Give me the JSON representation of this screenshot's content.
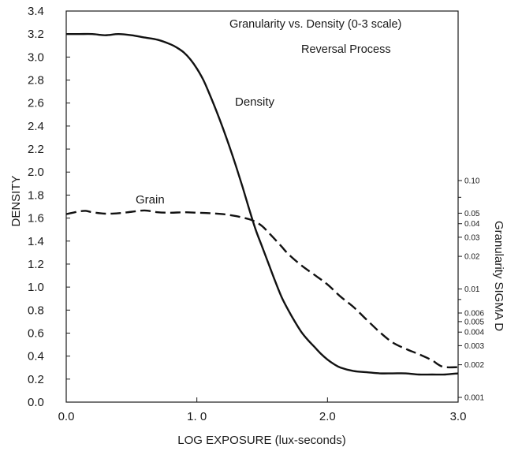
{
  "chart_data": {
    "type": "line",
    "title": "Granularity vs. Density (0-3 scale)",
    "subtitle": "Reversal Process",
    "xlabel": "LOG EXPOSURE (lux-seconds)",
    "ylabel": "DENSITY",
    "y2label": "Granularity SIGMA D",
    "xlim": [
      0,
      3
    ],
    "ylim": [
      0,
      3.4
    ],
    "y2lim": [
      0.001,
      0.2
    ],
    "y2scale": "log",
    "grid": false,
    "x_ticks": [
      {
        "value": 0,
        "label": "0.0"
      },
      {
        "value": 1,
        "label": "1. 0"
      },
      {
        "value": 2,
        "label": "2.0"
      },
      {
        "value": 3,
        "label": "3.0"
      }
    ],
    "y_ticks": [
      {
        "value": 0.0,
        "label": "0.0"
      },
      {
        "value": 0.2,
        "label": "0.2"
      },
      {
        "value": 0.4,
        "label": "0.4"
      },
      {
        "value": 0.6,
        "label": "0.6"
      },
      {
        "value": 0.8,
        "label": "0.8"
      },
      {
        "value": 1.0,
        "label": "1.0"
      },
      {
        "value": 1.2,
        "label": "1.2"
      },
      {
        "value": 1.4,
        "label": "1.4"
      },
      {
        "value": 1.6,
        "label": "1.6"
      },
      {
        "value": 1.8,
        "label": "1.8"
      },
      {
        "value": 2.0,
        "label": "2.0"
      },
      {
        "value": 2.2,
        "label": "2.2"
      },
      {
        "value": 2.4,
        "label": "2.4"
      },
      {
        "value": 2.6,
        "label": "2.6"
      },
      {
        "value": 2.8,
        "label": "2.8"
      },
      {
        "value": 3.0,
        "label": "3.0"
      },
      {
        "value": 3.2,
        "label": "3.2"
      },
      {
        "value": 3.4,
        "label": "3.4"
      }
    ],
    "y2_ticks": [
      {
        "value": 0.1,
        "label": "0.10"
      },
      {
        "value": 0.05,
        "label": "0.05"
      },
      {
        "value": 0.04,
        "label": "0.04"
      },
      {
        "value": 0.03,
        "label": "0.03"
      },
      {
        "value": 0.02,
        "label": "0.02"
      },
      {
        "value": 0.01,
        "label": "0.01"
      },
      {
        "value": 0.006,
        "label": "0.006"
      },
      {
        "value": 0.005,
        "label": "0.005"
      },
      {
        "value": 0.004,
        "label": "0.004"
      },
      {
        "value": 0.003,
        "label": "0.003"
      },
      {
        "value": 0.002,
        "label": "0.002"
      },
      {
        "value": 0.001,
        "label": "0.001"
      }
    ],
    "y2_minor_ticks": [
      0.07,
      0.008
    ],
    "series": [
      {
        "name": "Density",
        "style": "solid",
        "x": [
          0.0,
          0.1,
          0.2,
          0.3,
          0.4,
          0.5,
          0.6,
          0.7,
          0.8,
          0.85,
          0.9,
          0.95,
          1.0,
          1.05,
          1.1,
          1.15,
          1.2,
          1.25,
          1.3,
          1.35,
          1.4,
          1.45,
          1.5,
          1.55,
          1.6,
          1.65,
          1.7,
          1.75,
          1.8,
          1.85,
          1.9,
          1.95,
          2.0,
          2.05,
          2.1,
          2.2,
          2.3,
          2.4,
          2.5,
          2.6,
          2.7,
          2.8,
          2.9,
          3.0
        ],
        "y": [
          3.2,
          3.2,
          3.2,
          3.19,
          3.2,
          3.19,
          3.17,
          3.15,
          3.11,
          3.08,
          3.04,
          2.98,
          2.9,
          2.8,
          2.67,
          2.53,
          2.38,
          2.22,
          2.05,
          1.87,
          1.68,
          1.5,
          1.35,
          1.2,
          1.05,
          0.91,
          0.8,
          0.7,
          0.61,
          0.54,
          0.48,
          0.42,
          0.37,
          0.33,
          0.3,
          0.27,
          0.26,
          0.25,
          0.25,
          0.25,
          0.24,
          0.24,
          0.24,
          0.25
        ]
      },
      {
        "name": "Grain",
        "style": "dashed",
        "x": [
          0.0,
          0.05,
          0.1,
          0.15,
          0.2,
          0.3,
          0.4,
          0.5,
          0.6,
          0.7,
          0.8,
          0.9,
          1.0,
          1.1,
          1.2,
          1.3,
          1.4,
          1.45,
          1.5,
          1.55,
          1.6,
          1.65,
          1.7,
          1.8,
          1.9,
          2.0,
          2.1,
          2.2,
          2.3,
          2.4,
          2.5,
          2.6,
          2.7,
          2.8,
          2.85,
          2.9,
          3.0
        ],
        "y": [
          0.049,
          0.0505,
          0.052,
          0.0525,
          0.051,
          0.0495,
          0.05,
          0.0515,
          0.053,
          0.051,
          0.0505,
          0.051,
          0.0505,
          0.05,
          0.049,
          0.047,
          0.044,
          0.0415,
          0.038,
          0.033,
          0.0285,
          0.0245,
          0.021,
          0.0165,
          0.0135,
          0.011,
          0.0085,
          0.0068,
          0.0052,
          0.004,
          0.0032,
          0.0028,
          0.0025,
          0.0022,
          0.002,
          0.0019,
          0.0019
        ]
      }
    ]
  }
}
